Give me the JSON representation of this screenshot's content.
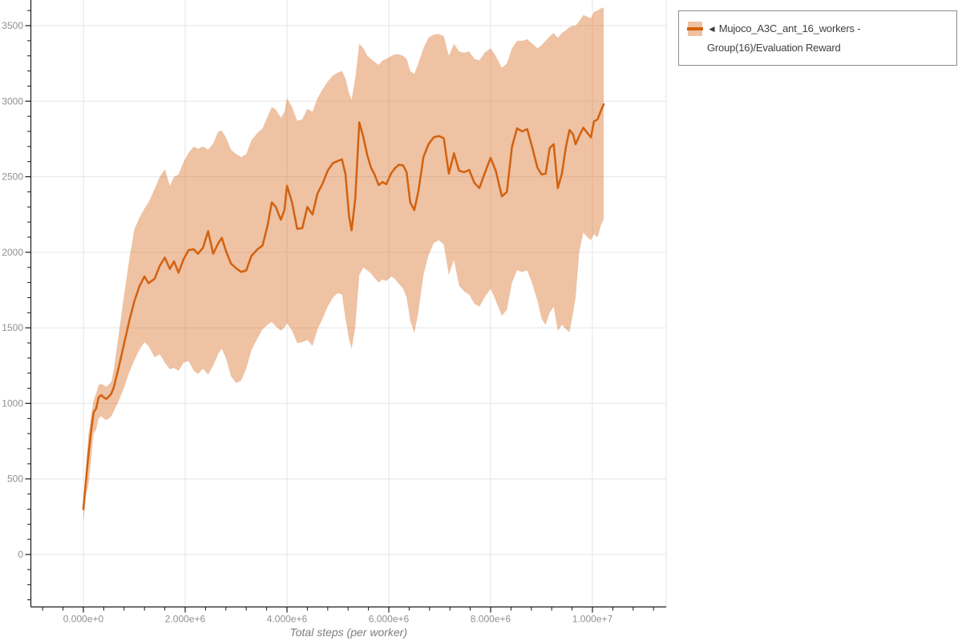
{
  "legend": {
    "marker": "◄",
    "label": "Mujoco_A3C_ant_16_workers - Group(16)/Evaluation Reward",
    "series_color": "#d3610e",
    "band_color": "rgba(211,95,14,0.38)"
  },
  "chart_data": {
    "type": "line",
    "title": "",
    "xlabel": "Total steps (per worker)",
    "ylabel": "",
    "x_unit": "steps",
    "x_scale": 1000000,
    "xlim_m": [
      -1.05,
      11.45
    ],
    "ylim": [
      -345,
      3670
    ],
    "grid": true,
    "legend_position": "outside-top-right",
    "x_major_ticks": [
      {
        "value_m": 0,
        "label": "0.000e+0"
      },
      {
        "value_m": 2,
        "label": "2.000e+6"
      },
      {
        "value_m": 4,
        "label": "4.000e+6"
      },
      {
        "value_m": 6,
        "label": "6.000e+6"
      },
      {
        "value_m": 8,
        "label": "8.000e+6"
      },
      {
        "value_m": 10,
        "label": "1.000e+7"
      }
    ],
    "y_major_ticks": [
      {
        "value": 0,
        "label": "0"
      },
      {
        "value": 500,
        "label": "500"
      },
      {
        "value": 1000,
        "label": "1000"
      },
      {
        "value": 1500,
        "label": "1500"
      },
      {
        "value": 2000,
        "label": "2000"
      },
      {
        "value": 2500,
        "label": "2500"
      },
      {
        "value": 3000,
        "label": "3000"
      },
      {
        "value": 3500,
        "label": "3500"
      }
    ],
    "x_minor_step_m": 0.4,
    "y_minor_step": 100,
    "colors": {
      "line": "#d3610e",
      "band": "rgba(211,95,14,0.38)",
      "grid": "#e6e6e6",
      "axis": "#1a1a1a",
      "tick_label": "#8f8f8f",
      "axis_title": "#7d7d7d"
    },
    "series": [
      {
        "name": "Mujoco_A3C_ant_16_workers - Group(16)/Evaluation Reward",
        "color": "#d3610e",
        "band_color": "rgba(211,95,14,0.38)",
        "points_format": [
          "step_millions",
          "mean",
          "band_lower",
          "band_upper"
        ],
        "points": [
          [
            0.0,
            300,
            205,
            335
          ],
          [
            0.05,
            490,
            390,
            570
          ],
          [
            0.1,
            660,
            460,
            790
          ],
          [
            0.15,
            810,
            620,
            910
          ],
          [
            0.2,
            940,
            800,
            1020
          ],
          [
            0.25,
            965,
            825,
            1065
          ],
          [
            0.3,
            1040,
            900,
            1120
          ],
          [
            0.35,
            1055,
            915,
            1130
          ],
          [
            0.4,
            1040,
            900,
            1120
          ],
          [
            0.45,
            1030,
            890,
            1110
          ],
          [
            0.5,
            1045,
            900,
            1125
          ],
          [
            0.55,
            1065,
            915,
            1145
          ],
          [
            0.6,
            1110,
            950,
            1230
          ],
          [
            0.7,
            1245,
            1020,
            1470
          ],
          [
            0.8,
            1395,
            1105,
            1720
          ],
          [
            0.9,
            1545,
            1205,
            1950
          ],
          [
            1.0,
            1675,
            1285,
            2150
          ],
          [
            1.1,
            1775,
            1355,
            2230
          ],
          [
            1.2,
            1840,
            1405,
            2290
          ],
          [
            1.28,
            1795,
            1380,
            2330
          ],
          [
            1.4,
            1825,
            1305,
            2420
          ],
          [
            1.5,
            1910,
            1325,
            2500
          ],
          [
            1.6,
            1965,
            1270,
            2550
          ],
          [
            1.7,
            1890,
            1225,
            2440
          ],
          [
            1.78,
            1940,
            1235,
            2500
          ],
          [
            1.87,
            1865,
            1215,
            2515
          ],
          [
            1.97,
            1955,
            1270,
            2600
          ],
          [
            2.07,
            2015,
            1280,
            2660
          ],
          [
            2.17,
            2020,
            1215,
            2700
          ],
          [
            2.25,
            1990,
            1195,
            2685
          ],
          [
            2.35,
            2030,
            1230,
            2700
          ],
          [
            2.45,
            2140,
            1190,
            2680
          ],
          [
            2.55,
            1990,
            1250,
            2720
          ],
          [
            2.65,
            2060,
            1330,
            2800
          ],
          [
            2.72,
            2095,
            1360,
            2805
          ],
          [
            2.8,
            2010,
            1300,
            2760
          ],
          [
            2.9,
            1925,
            1180,
            2680
          ],
          [
            3.0,
            1895,
            1135,
            2650
          ],
          [
            3.1,
            1870,
            1150,
            2630
          ],
          [
            3.2,
            1880,
            1230,
            2650
          ],
          [
            3.3,
            1975,
            1350,
            2740
          ],
          [
            3.42,
            2020,
            1430,
            2790
          ],
          [
            3.52,
            2045,
            1490,
            2820
          ],
          [
            3.62,
            2180,
            1520,
            2900
          ],
          [
            3.7,
            2330,
            1540,
            2960
          ],
          [
            3.78,
            2300,
            1510,
            2945
          ],
          [
            3.88,
            2215,
            1480,
            2890
          ],
          [
            3.95,
            2280,
            1500,
            2930
          ],
          [
            4.0,
            2440,
            1530,
            3020
          ],
          [
            4.1,
            2330,
            1480,
            2960
          ],
          [
            4.2,
            2155,
            1400,
            2870
          ],
          [
            4.3,
            2160,
            1405,
            2880
          ],
          [
            4.4,
            2300,
            1420,
            2950
          ],
          [
            4.5,
            2250,
            1380,
            2930
          ],
          [
            4.6,
            2390,
            1490,
            3020
          ],
          [
            4.7,
            2455,
            1560,
            3080
          ],
          [
            4.8,
            2540,
            1640,
            3130
          ],
          [
            4.9,
            2590,
            1700,
            3170
          ],
          [
            5.0,
            2605,
            1730,
            3190
          ],
          [
            5.08,
            2615,
            1720,
            3200
          ],
          [
            5.15,
            2515,
            1560,
            3150
          ],
          [
            5.22,
            2235,
            1420,
            3050
          ],
          [
            5.27,
            2145,
            1360,
            3010
          ],
          [
            5.34,
            2350,
            1500,
            3150
          ],
          [
            5.42,
            2860,
            1850,
            3380
          ],
          [
            5.5,
            2760,
            1900,
            3350
          ],
          [
            5.58,
            2640,
            1880,
            3300
          ],
          [
            5.65,
            2560,
            1860,
            3280
          ],
          [
            5.72,
            2515,
            1830,
            3260
          ],
          [
            5.8,
            2445,
            1800,
            3240
          ],
          [
            5.88,
            2465,
            1820,
            3270
          ],
          [
            5.95,
            2450,
            1810,
            3280
          ],
          [
            6.05,
            2525,
            1840,
            3300
          ],
          [
            6.13,
            2560,
            1820,
            3310
          ],
          [
            6.2,
            2580,
            1790,
            3310
          ],
          [
            6.28,
            2575,
            1760,
            3300
          ],
          [
            6.35,
            2530,
            1700,
            3280
          ],
          [
            6.42,
            2330,
            1550,
            3200
          ],
          [
            6.5,
            2280,
            1465,
            3180
          ],
          [
            6.58,
            2400,
            1600,
            3250
          ],
          [
            6.68,
            2630,
            1850,
            3350
          ],
          [
            6.78,
            2715,
            1980,
            3420
          ],
          [
            6.88,
            2760,
            2060,
            3440
          ],
          [
            6.98,
            2770,
            2080,
            3445
          ],
          [
            7.08,
            2755,
            2050,
            3430
          ],
          [
            7.18,
            2520,
            1850,
            3300
          ],
          [
            7.28,
            2655,
            1950,
            3380
          ],
          [
            7.38,
            2540,
            1780,
            3330
          ],
          [
            7.48,
            2530,
            1740,
            3320
          ],
          [
            7.58,
            2545,
            1720,
            3330
          ],
          [
            7.68,
            2460,
            1660,
            3280
          ],
          [
            7.78,
            2425,
            1640,
            3270
          ],
          [
            7.88,
            2520,
            1700,
            3320
          ],
          [
            8.0,
            2625,
            1760,
            3350
          ],
          [
            8.1,
            2540,
            1680,
            3300
          ],
          [
            8.22,
            2370,
            1580,
            3220
          ],
          [
            8.32,
            2400,
            1620,
            3250
          ],
          [
            8.42,
            2700,
            1800,
            3350
          ],
          [
            8.52,
            2820,
            1880,
            3400
          ],
          [
            8.62,
            2800,
            1870,
            3400
          ],
          [
            8.72,
            2815,
            1880,
            3410
          ],
          [
            8.82,
            2690,
            1790,
            3380
          ],
          [
            8.92,
            2560,
            1680,
            3350
          ],
          [
            9.0,
            2515,
            1560,
            3370
          ],
          [
            9.08,
            2520,
            1520,
            3400
          ],
          [
            9.16,
            2690,
            1600,
            3430
          ],
          [
            9.24,
            2715,
            1640,
            3450
          ],
          [
            9.32,
            2425,
            1480,
            3420
          ],
          [
            9.4,
            2520,
            1520,
            3450
          ],
          [
            9.48,
            2700,
            1490,
            3470
          ],
          [
            9.55,
            2810,
            1470,
            3490
          ],
          [
            9.62,
            2780,
            1600,
            3500
          ],
          [
            9.67,
            2715,
            1700,
            3500
          ],
          [
            9.74,
            2770,
            2000,
            3530
          ],
          [
            9.82,
            2825,
            2130,
            3570
          ],
          [
            9.9,
            2790,
            2100,
            3560
          ],
          [
            9.97,
            2760,
            2080,
            3550
          ],
          [
            10.03,
            2865,
            2120,
            3590
          ],
          [
            10.1,
            2880,
            2100,
            3600
          ],
          [
            10.17,
            2940,
            2180,
            3615
          ],
          [
            10.22,
            2980,
            2220,
            3620
          ]
        ]
      }
    ]
  }
}
